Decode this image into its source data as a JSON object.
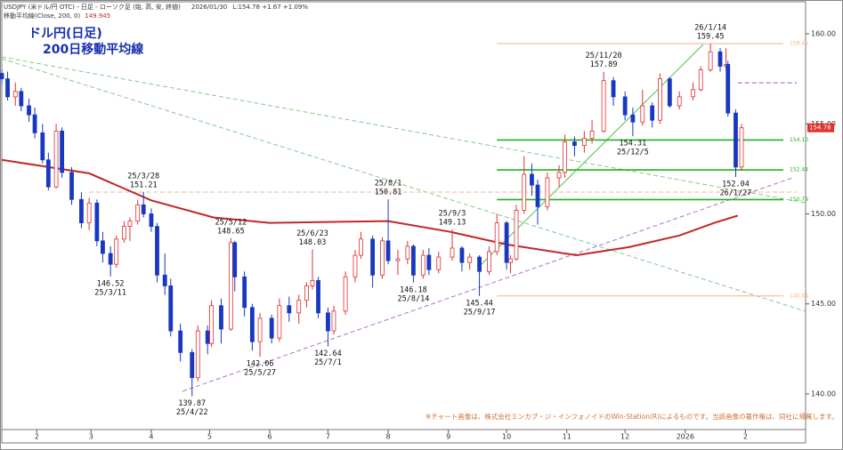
{
  "chart_data": {
    "type": "candlestick",
    "header": "USDJPY (米ドル/円 OTC) - 日足 - ローソク足 (始, 高, 安, 終値)",
    "header_date": "2026/01/30",
    "header_quote": "L:154.78 +1.67 +1.09%",
    "ma_label": "移動平均線(Close, 200, 0)",
    "ma_last": 149.945,
    "title": "ドル円(日足)",
    "subtitle": "200日移動平均線",
    "footnote": "※チャート画像は、株式会社ミンカブ・ジ・インフォノイドのWin-Station(R)によるものです。当該画像の著作権は、同社に帰属します。",
    "xlim": [
      "2025-01-14",
      "2026-03-04"
    ],
    "xticks": [
      {
        "value": "2025-02-01",
        "label": "2"
      },
      {
        "value": "2025-03-01",
        "label": "3"
      },
      {
        "value": "2025-04-01",
        "label": "4"
      },
      {
        "value": "2025-05-01",
        "label": "5"
      },
      {
        "value": "2025-06-01",
        "label": "6"
      },
      {
        "value": "2025-07-01",
        "label": "7"
      },
      {
        "value": "2025-08-01",
        "label": "8"
      },
      {
        "value": "2025-09-01",
        "label": "9"
      },
      {
        "value": "2025-10-01",
        "label": "10"
      },
      {
        "value": "2025-11-01",
        "label": "11"
      },
      {
        "value": "2025-12-01",
        "label": "12"
      },
      {
        "value": "2026-01-01",
        "label": "2026"
      },
      {
        "value": "2026-02-01",
        "label": "2"
      }
    ],
    "ylim": [
      138.02,
      161.78
    ],
    "yticks": [
      {
        "value": 140,
        "label": "140.00"
      },
      {
        "value": 145,
        "label": "145.00"
      },
      {
        "value": 150,
        "label": "150.00"
      },
      {
        "value": 155,
        "label": "155.00"
      },
      {
        "value": 160,
        "label": "160.00"
      }
    ],
    "up_color": "#e03030",
    "down_color": "#1838c0",
    "ma_color": "#c0282a",
    "last_price": 154.78,
    "dates": [
      "2025-01-14",
      "2025-01-17",
      "2025-01-21",
      "2025-01-24",
      "2025-01-28",
      "2025-01-31",
      "2025-02-04",
      "2025-02-07",
      "2025-02-11",
      "2025-02-14",
      "2025-02-19",
      "2025-02-24",
      "2025-02-28",
      "2025-03-04",
      "2025-03-07",
      "2025-03-11",
      "2025-03-14",
      "2025-03-18",
      "2025-03-21",
      "2025-03-25",
      "2025-03-28",
      "2025-04-01",
      "2025-04-04",
      "2025-04-08",
      "2025-04-11",
      "2025-04-16",
      "2025-04-22",
      "2025-04-25",
      "2025-04-30",
      "2025-05-02",
      "2025-05-07",
      "2025-05-12",
      "2025-05-14",
      "2025-05-19",
      "2025-05-23",
      "2025-05-27",
      "2025-06-02",
      "2025-06-06",
      "2025-06-11",
      "2025-06-16",
      "2025-06-20",
      "2025-06-23",
      "2025-06-26",
      "2025-07-01",
      "2025-07-04",
      "2025-07-10",
      "2025-07-15",
      "2025-07-18",
      "2025-07-24",
      "2025-07-29",
      "2025-08-01",
      "2025-08-06",
      "2025-08-11",
      "2025-08-14",
      "2025-08-19",
      "2025-08-22",
      "2025-08-27",
      "2025-09-03",
      "2025-09-08",
      "2025-09-12",
      "2025-09-17",
      "2025-09-22",
      "2025-09-26",
      "2025-10-01",
      "2025-10-03",
      "2025-10-06",
      "2025-10-10",
      "2025-10-14",
      "2025-10-17",
      "2025-10-22",
      "2025-10-28",
      "2025-10-31",
      "2025-11-05",
      "2025-11-10",
      "2025-11-14",
      "2025-11-20",
      "2025-11-25",
      "2025-12-01",
      "2025-12-05",
      "2025-12-10",
      "2025-12-15",
      "2025-12-19",
      "2025-12-24",
      "2025-12-29",
      "2026-01-05",
      "2026-01-09",
      "2026-01-14",
      "2026-01-19",
      "2026-01-22",
      "2026-01-23",
      "2026-01-27",
      "2026-01-30"
    ],
    "open": [
      157.8,
      157.5,
      156.5,
      156.8,
      156.0,
      155.5,
      154.5,
      153.0,
      151.5,
      154.6,
      152.3,
      150.8,
      149.5,
      150.6,
      148.5,
      147.8,
      147.2,
      148.6,
      149.3,
      149.6,
      150.5,
      150.0,
      149.3,
      146.6,
      146.0,
      143.5,
      142.3,
      140.9,
      143.5,
      142.8,
      144.9,
      143.6,
      148.4,
      146.5,
      144.8,
      142.9,
      144.2,
      143.1,
      144.9,
      144.5,
      145.2,
      146.0,
      146.3,
      144.5,
      143.5,
      144.6,
      146.5,
      147.7,
      148.6,
      146.6,
      148.5,
      147.4,
      147.5,
      148.2,
      146.6,
      147.7,
      146.9,
      147.6,
      148.1,
      147.3,
      147.6,
      146.8,
      147.9,
      149.5,
      147.3,
      147.5,
      150.2,
      152.2,
      151.6,
      150.4,
      152.0,
      152.3,
      154.0,
      153.8,
      154.2,
      154.6,
      157.4,
      156.5,
      155.5,
      155.1,
      156.0,
      155.2,
      157.5,
      156.0,
      156.5,
      156.9,
      158.0,
      159.0,
      158.2,
      158.3,
      155.6,
      152.6
    ],
    "high": [
      158.0,
      157.9,
      157.3,
      157.0,
      156.4,
      155.9,
      155.0,
      153.4,
      155.0,
      154.8,
      152.6,
      151.2,
      150.9,
      150.8,
      149.0,
      148.2,
      148.8,
      149.6,
      149.8,
      150.8,
      151.21,
      150.3,
      149.5,
      147.8,
      146.4,
      143.9,
      142.5,
      143.8,
      143.8,
      145.2,
      145.3,
      148.65,
      148.5,
      146.8,
      145.0,
      144.5,
      144.4,
      145.3,
      145.4,
      145.5,
      146.2,
      148.03,
      146.5,
      144.8,
      144.9,
      146.8,
      148.0,
      149.0,
      148.8,
      148.7,
      150.81,
      148.0,
      148.5,
      148.3,
      148.0,
      148.1,
      147.9,
      149.13,
      148.2,
      147.8,
      147.7,
      148.2,
      150.0,
      149.6,
      147.7,
      150.5,
      153.2,
      152.8,
      151.9,
      152.3,
      152.7,
      154.4,
      154.3,
      154.6,
      155.2,
      157.89,
      157.6,
      156.8,
      155.9,
      156.9,
      156.2,
      157.8,
      157.6,
      156.8,
      157.3,
      158.2,
      159.45,
      159.2,
      159.2,
      158.5,
      155.8,
      155.0
    ],
    "low": [
      157.2,
      156.3,
      156.0,
      155.7,
      155.1,
      154.2,
      152.8,
      151.3,
      151.4,
      152.0,
      150.5,
      149.2,
      149.1,
      148.2,
      147.3,
      146.52,
      147.0,
      148.4,
      148.5,
      149.4,
      149.8,
      149.0,
      146.2,
      145.5,
      143.2,
      141.8,
      139.87,
      140.7,
      142.2,
      142.6,
      142.8,
      143.5,
      145.7,
      144.3,
      142.4,
      142.06,
      142.8,
      142.9,
      144.0,
      143.9,
      144.8,
      145.8,
      144.2,
      142.64,
      143.3,
      144.4,
      146.2,
      147.5,
      145.9,
      146.4,
      147.2,
      146.6,
      147.2,
      146.18,
      146.4,
      146.6,
      146.7,
      147.4,
      146.8,
      146.9,
      145.44,
      146.6,
      147.7,
      146.9,
      146.7,
      147.4,
      150.0,
      151.0,
      149.4,
      150.2,
      151.5,
      152.0,
      153.2,
      153.4,
      153.9,
      154.5,
      156.0,
      155.2,
      154.31,
      154.9,
      154.8,
      155.0,
      155.9,
      155.8,
      156.3,
      156.8,
      157.9,
      157.9,
      158.0,
      155.4,
      152.04,
      152.4
    ],
    "close": [
      157.5,
      156.5,
      156.8,
      156.0,
      155.5,
      154.5,
      153.0,
      151.5,
      154.6,
      152.3,
      150.8,
      149.5,
      150.6,
      148.5,
      147.8,
      147.2,
      148.6,
      149.3,
      149.6,
      150.5,
      150.0,
      149.3,
      146.6,
      146.0,
      143.5,
      142.3,
      140.9,
      143.5,
      142.8,
      144.9,
      143.6,
      148.4,
      146.5,
      144.8,
      142.9,
      144.2,
      143.1,
      144.9,
      144.5,
      145.2,
      146.0,
      146.3,
      144.5,
      143.5,
      144.6,
      146.5,
      147.7,
      148.6,
      146.6,
      148.5,
      147.4,
      147.5,
      148.2,
      146.6,
      147.7,
      146.9,
      147.6,
      148.1,
      147.3,
      147.6,
      146.8,
      147.9,
      149.5,
      147.3,
      147.5,
      150.2,
      152.2,
      151.6,
      150.4,
      152.0,
      152.3,
      154.0,
      153.8,
      154.2,
      154.6,
      157.4,
      156.5,
      155.5,
      155.1,
      156.0,
      155.2,
      157.5,
      156.0,
      156.5,
      156.9,
      158.0,
      159.0,
      158.2,
      158.3,
      155.6,
      152.6,
      154.78
    ],
    "ma_dates": [
      "2025-01-14",
      "2025-02-28",
      "2025-04-01",
      "2025-05-03",
      "2025-06-01",
      "2025-08-01",
      "2025-09-02",
      "2025-10-01",
      "2025-11-06",
      "2025-12-03",
      "2025-12-29",
      "2026-01-16",
      "2026-01-28"
    ],
    "ma_values": [
      153.0,
      152.25,
      150.75,
      149.8,
      149.5,
      149.6,
      149.0,
      148.3,
      147.7,
      148.15,
      148.8,
      149.5,
      149.9
    ],
    "levels": [
      {
        "value": 159.45,
        "from": "2025-09-26",
        "color": "#f4b183",
        "dash": false,
        "show_label": true
      },
      {
        "value": 154.1,
        "label": "154.10",
        "from": "2025-09-26",
        "color": "#22b022",
        "dash": false,
        "show_label": true
      },
      {
        "value": 152.44,
        "from": "2025-09-26",
        "color": "#22b022",
        "dash": false,
        "show_label": true
      },
      {
        "value": 150.79,
        "from": "2025-09-26",
        "color": "#22b022",
        "dash": false,
        "show_label": true
      },
      {
        "value": 145.44,
        "from": "2025-09-26",
        "color": "#f4b183",
        "dash": false,
        "show_label": true
      },
      {
        "value": 151.21,
        "from": "2025-02-28",
        "color": "#e8b890",
        "dash": true,
        "show_label": false
      },
      {
        "value": 157.28,
        "from": "2026-01-28",
        "color": "#a050c0",
        "dash": true,
        "show_label": false
      }
    ],
    "annotations": [
      {
        "date": "25/3/28",
        "price": 151.21,
        "position": "above"
      },
      {
        "date": "25/3/11",
        "price": 146.52,
        "position": "below"
      },
      {
        "date": "25/4/22",
        "price": 139.87,
        "position": "below"
      },
      {
        "date": "25/5/12",
        "price": 148.65,
        "position": "above"
      },
      {
        "date": "25/5/27",
        "price": 142.06,
        "position": "below"
      },
      {
        "date": "25/6/23",
        "price": 148.03,
        "position": "above"
      },
      {
        "date": "25/7/1",
        "price": 142.64,
        "position": "below"
      },
      {
        "date": "25/8/1",
        "price": 150.81,
        "position": "above"
      },
      {
        "date": "25/8/14",
        "price": 146.18,
        "position": "below"
      },
      {
        "date": "25/9/3",
        "price": 149.13,
        "position": "above"
      },
      {
        "date": "25/9/17",
        "price": 145.44,
        "position": "below"
      },
      {
        "date": "25/11/20",
        "price": 157.89,
        "position": "above"
      },
      {
        "date": "25/12/5",
        "price": 154.31,
        "position": "below"
      },
      {
        "date": "26/1/14",
        "price": 159.45,
        "position": "above"
      },
      {
        "date": "26/1/27",
        "price": 152.04,
        "position": "below"
      }
    ]
  }
}
